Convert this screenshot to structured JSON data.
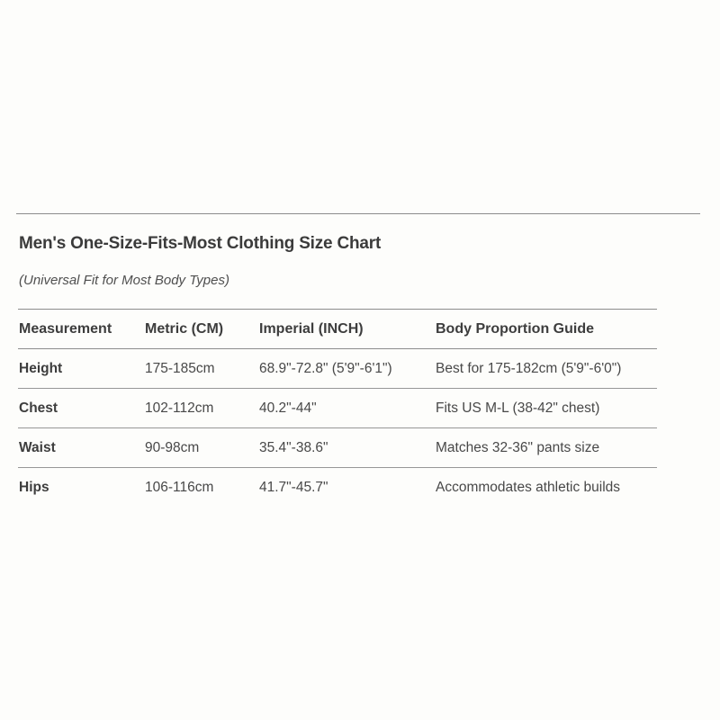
{
  "header": {
    "title": "Men's One-Size-Fits-Most Clothing Size Chart",
    "subtitle": "(Universal Fit for Most Body Types)"
  },
  "table": {
    "columns": [
      "Measurement",
      "Metric (CM)",
      "Imperial (INCH)",
      "Body Proportion Guide"
    ],
    "rows": [
      {
        "measurement": "Height",
        "metric": "175-185cm",
        "imperial": "68.9\"-72.8\" (5'9\"-6'1\")",
        "guide": "Best for 175-182cm (5'9\"-6'0\")"
      },
      {
        "measurement": "Chest",
        "metric": "102-112cm",
        "imperial": "40.2\"-44\"",
        "guide": "Fits US M-L (38-42\" chest)"
      },
      {
        "measurement": "Waist",
        "metric": "90-98cm",
        "imperial": "35.4\"-38.6\"",
        "guide": "Matches 32-36\" pants size"
      },
      {
        "measurement": "Hips",
        "metric": "106-116cm",
        "imperial": "41.7\"-45.7\"",
        "guide": "Accommodates athletic builds"
      }
    ]
  },
  "colors": {
    "page_background": "#fdfdfb",
    "rule_line": "#8c8c8c",
    "row_separator": "#979797",
    "title_text": "#3b3b3b",
    "body_text": "#484848"
  }
}
